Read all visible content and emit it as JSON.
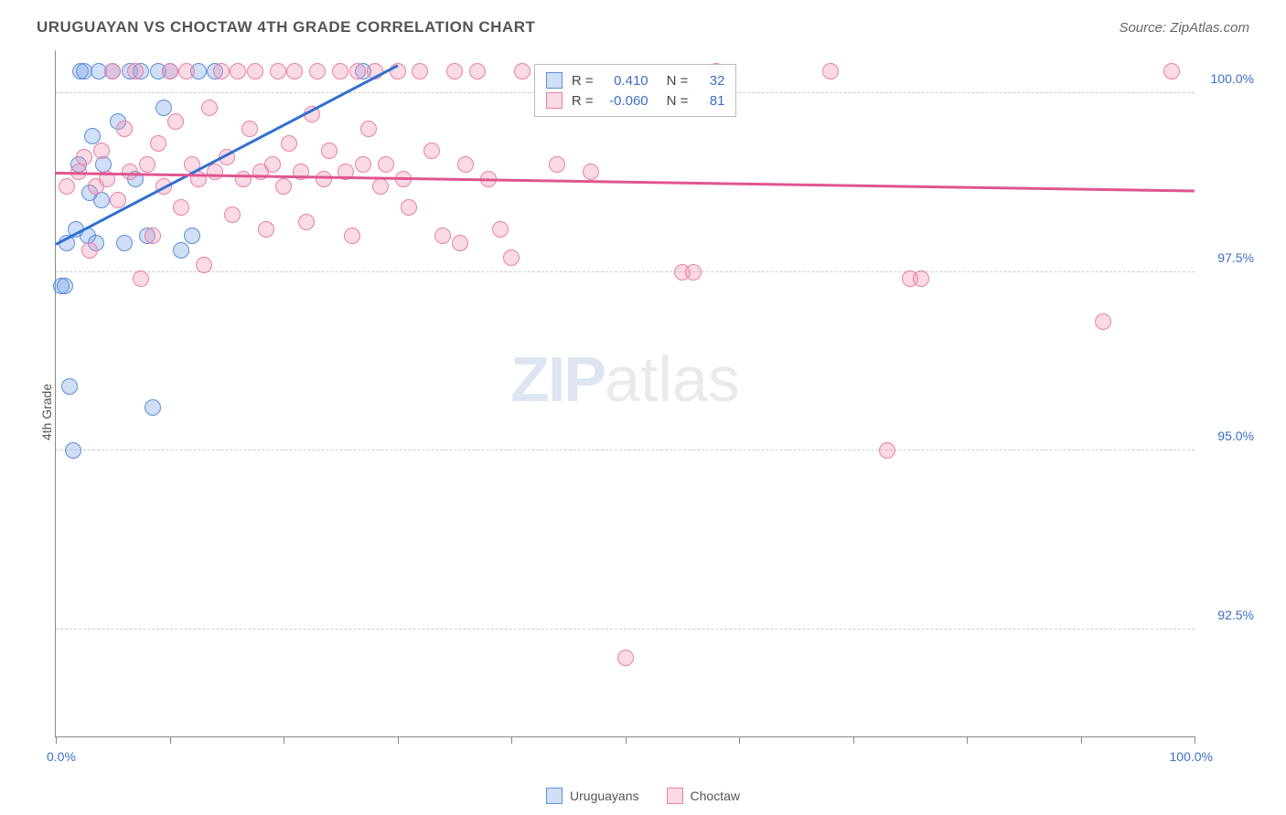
{
  "header": {
    "title": "URUGUAYAN VS CHOCTAW 4TH GRADE CORRELATION CHART",
    "source": "Source: ZipAtlas.com"
  },
  "chart": {
    "type": "scatter",
    "yaxis_title": "4th Grade",
    "xlim": [
      0,
      100
    ],
    "ylim": [
      91,
      100.6
    ],
    "xtick_label_left": "0.0%",
    "xtick_label_right": "100.0%",
    "xticks_pct": [
      0,
      10,
      20,
      30,
      40,
      50,
      60,
      70,
      80,
      90,
      100
    ],
    "yticks": [
      {
        "value": 92.5,
        "label": "92.5%"
      },
      {
        "value": 95.0,
        "label": "95.0%"
      },
      {
        "value": 97.5,
        "label": "97.5%"
      },
      {
        "value": 100.0,
        "label": "100.0%"
      }
    ],
    "grid_color": "#cccccc",
    "background_color": "#ffffff",
    "series": [
      {
        "name": "Uruguayans",
        "fill": "rgba(120,160,230,0.35)",
        "stroke": "#5b8fd6",
        "marker_radius": 9,
        "r_label": "R =",
        "r_value": "0.410",
        "n_label": "N =",
        "n_value": "32",
        "trend": {
          "x0": 0,
          "y0": 97.9,
          "x1": 30,
          "y1": 100.4,
          "color": "#2f6fd0",
          "width": 2.5
        },
        "points": [
          [
            0.5,
            97.3
          ],
          [
            0.8,
            97.3
          ],
          [
            1.0,
            97.9
          ],
          [
            1.2,
            95.9
          ],
          [
            1.5,
            95.0
          ],
          [
            1.8,
            98.1
          ],
          [
            2.0,
            99.0
          ],
          [
            2.2,
            100.3
          ],
          [
            2.5,
            100.3
          ],
          [
            2.8,
            98.0
          ],
          [
            3.0,
            98.6
          ],
          [
            3.2,
            99.4
          ],
          [
            3.5,
            97.9
          ],
          [
            3.8,
            100.3
          ],
          [
            4.0,
            98.5
          ],
          [
            4.2,
            99.0
          ],
          [
            5.0,
            100.3
          ],
          [
            5.5,
            99.6
          ],
          [
            6.0,
            97.9
          ],
          [
            6.5,
            100.3
          ],
          [
            7.0,
            98.8
          ],
          [
            7.5,
            100.3
          ],
          [
            8.0,
            98.0
          ],
          [
            8.5,
            95.6
          ],
          [
            9.0,
            100.3
          ],
          [
            9.5,
            99.8
          ],
          [
            10.0,
            100.3
          ],
          [
            11.0,
            97.8
          ],
          [
            12.0,
            98.0
          ],
          [
            12.5,
            100.3
          ],
          [
            14.0,
            100.3
          ],
          [
            27.0,
            100.3
          ]
        ]
      },
      {
        "name": "Choctaw",
        "fill": "rgba(240,150,180,0.35)",
        "stroke": "#e87fa8",
        "marker_radius": 9,
        "r_label": "R =",
        "r_value": "-0.060",
        "n_label": "N =",
        "n_value": "81",
        "trend": {
          "x0": 0,
          "y0": 98.9,
          "x1": 100,
          "y1": 98.65,
          "color": "#e05590",
          "width": 2.5
        },
        "points": [
          [
            1.0,
            98.7
          ],
          [
            2.0,
            98.9
          ],
          [
            2.5,
            99.1
          ],
          [
            3.0,
            97.8
          ],
          [
            3.5,
            98.7
          ],
          [
            4.0,
            99.2
          ],
          [
            4.5,
            98.8
          ],
          [
            5.0,
            100.3
          ],
          [
            5.5,
            98.5
          ],
          [
            6.0,
            99.5
          ],
          [
            6.5,
            98.9
          ],
          [
            7.0,
            100.3
          ],
          [
            7.5,
            97.4
          ],
          [
            8.0,
            99.0
          ],
          [
            8.5,
            98.0
          ],
          [
            9.0,
            99.3
          ],
          [
            9.5,
            98.7
          ],
          [
            10.0,
            100.3
          ],
          [
            10.5,
            99.6
          ],
          [
            11.0,
            98.4
          ],
          [
            11.5,
            100.3
          ],
          [
            12.0,
            99.0
          ],
          [
            12.5,
            98.8
          ],
          [
            13.0,
            97.6
          ],
          [
            13.5,
            99.8
          ],
          [
            14.0,
            98.9
          ],
          [
            14.5,
            100.3
          ],
          [
            15.0,
            99.1
          ],
          [
            15.5,
            98.3
          ],
          [
            16.0,
            100.3
          ],
          [
            16.5,
            98.8
          ],
          [
            17.0,
            99.5
          ],
          [
            17.5,
            100.3
          ],
          [
            18.0,
            98.9
          ],
          [
            18.5,
            98.1
          ],
          [
            19.0,
            99.0
          ],
          [
            19.5,
            100.3
          ],
          [
            20.0,
            98.7
          ],
          [
            20.5,
            99.3
          ],
          [
            21.0,
            100.3
          ],
          [
            21.5,
            98.9
          ],
          [
            22.0,
            98.2
          ],
          [
            22.5,
            99.7
          ],
          [
            23.0,
            100.3
          ],
          [
            23.5,
            98.8
          ],
          [
            24.0,
            99.2
          ],
          [
            25.0,
            100.3
          ],
          [
            25.5,
            98.9
          ],
          [
            26.0,
            98.0
          ],
          [
            26.5,
            100.3
          ],
          [
            27.0,
            99.0
          ],
          [
            27.5,
            99.5
          ],
          [
            28.0,
            100.3
          ],
          [
            28.5,
            98.7
          ],
          [
            29.0,
            99.0
          ],
          [
            30.0,
            100.3
          ],
          [
            30.5,
            98.8
          ],
          [
            31.0,
            98.4
          ],
          [
            32.0,
            100.3
          ],
          [
            33.0,
            99.2
          ],
          [
            34.0,
            98.0
          ],
          [
            35.0,
            100.3
          ],
          [
            35.5,
            97.9
          ],
          [
            36.0,
            99.0
          ],
          [
            37.0,
            100.3
          ],
          [
            38.0,
            98.8
          ],
          [
            39.0,
            98.1
          ],
          [
            40.0,
            97.7
          ],
          [
            41.0,
            100.3
          ],
          [
            44.0,
            99.0
          ],
          [
            47.0,
            98.9
          ],
          [
            50.0,
            92.1
          ],
          [
            55.0,
            97.5
          ],
          [
            56.0,
            97.5
          ],
          [
            58.0,
            100.3
          ],
          [
            68.0,
            100.3
          ],
          [
            73.0,
            95.0
          ],
          [
            75.0,
            97.4
          ],
          [
            76.0,
            97.4
          ],
          [
            92.0,
            96.8
          ],
          [
            98.0,
            100.3
          ]
        ]
      }
    ],
    "watermark": {
      "zip": "ZIP",
      "atlas": "atlas"
    },
    "stats_box": {
      "left_pct": 42,
      "top_pct": 2
    }
  },
  "legend": {
    "items": [
      {
        "label": "Uruguayans",
        "fill": "rgba(120,160,230,0.35)",
        "stroke": "#5b8fd6"
      },
      {
        "label": "Choctaw",
        "fill": "rgba(240,150,180,0.35)",
        "stroke": "#e87fa8"
      }
    ]
  }
}
